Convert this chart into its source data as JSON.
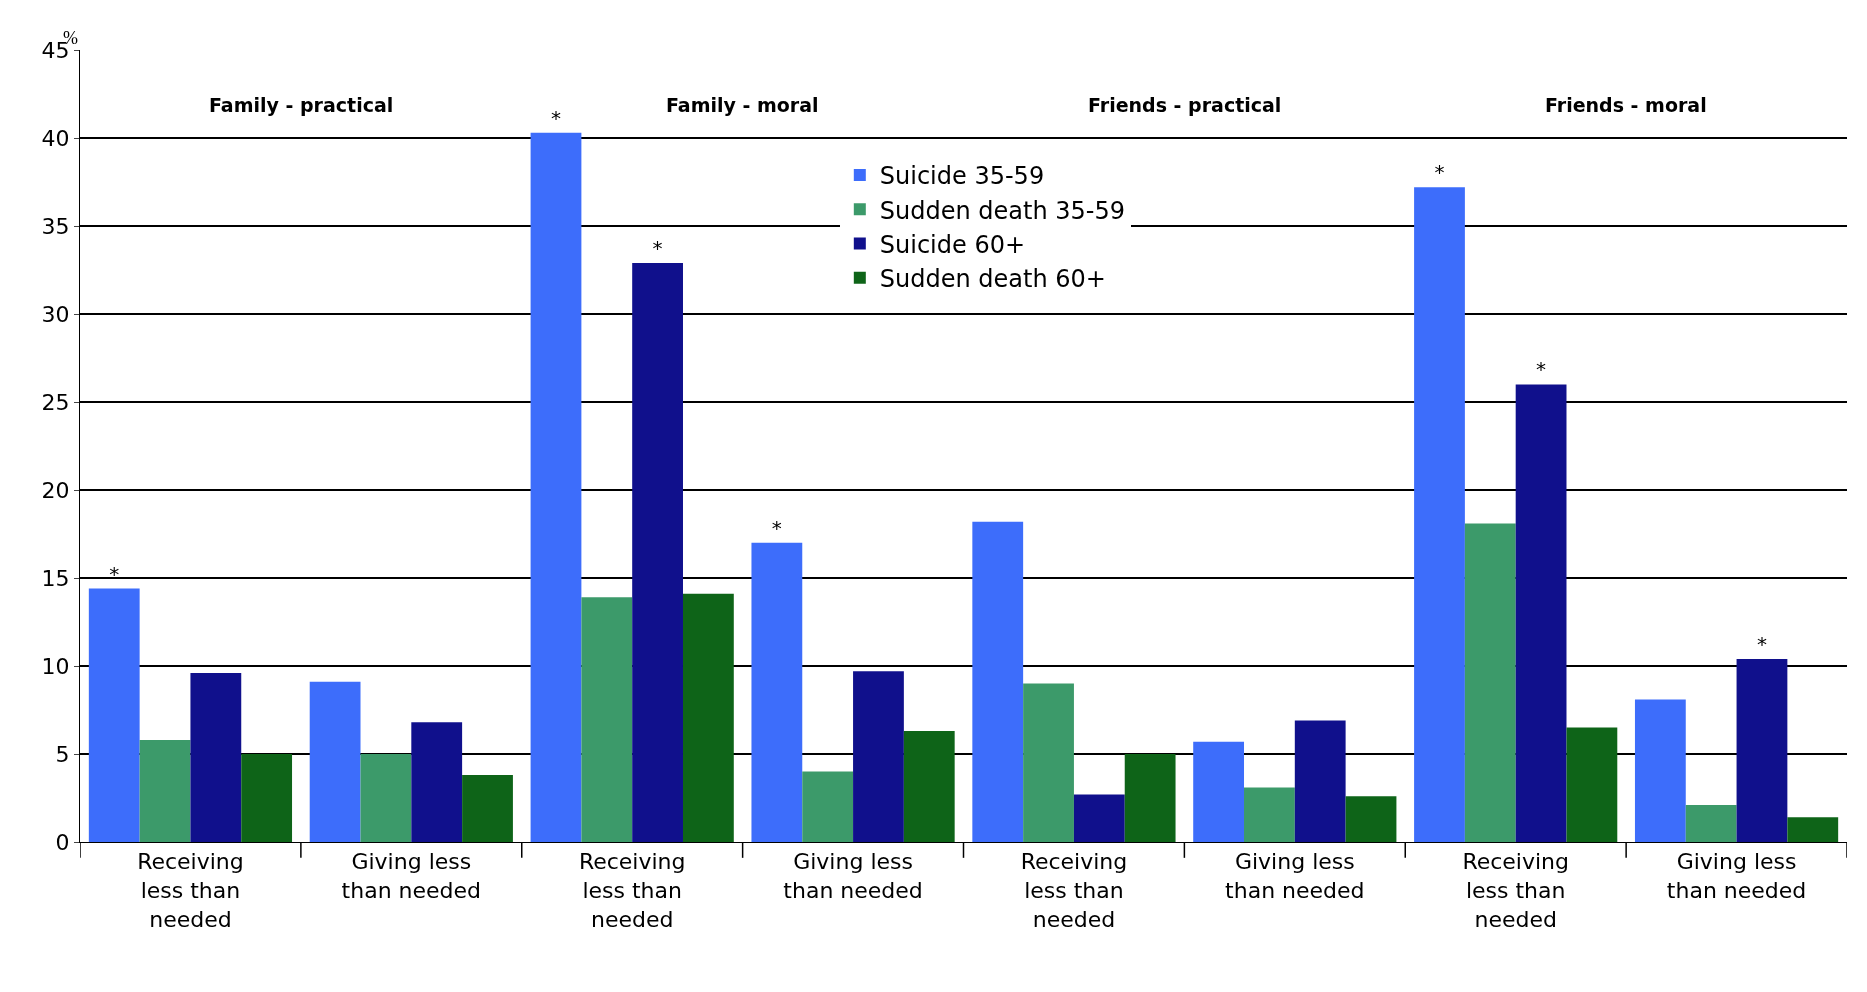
{
  "chart_data": {
    "type": "bar",
    "ylabel": "%",
    "categories": [
      "Receiving less than needed",
      "Giving less than needed",
      "Receiving less than needed",
      "Giving less than needed",
      "Receiving less than needed",
      "Giving less than needed",
      "Receiving less than needed",
      "Giving less than needed"
    ],
    "series": [
      {
        "name": "Suicide 35-59",
        "color": "#3d6dfb",
        "values": [
          14.4,
          9.1,
          40.3,
          17.0,
          18.2,
          5.7,
          37.2,
          8.1
        ],
        "value_labels": [
          "*",
          null,
          "*",
          "*",
          null,
          null,
          "*",
          null
        ]
      },
      {
        "name": "Sudden death 35-59",
        "color": "#3c9a6a",
        "values": [
          5.8,
          5.0,
          13.9,
          4.0,
          9.0,
          3.1,
          18.1,
          2.1
        ]
      },
      {
        "name": "Suicide 60+",
        "color": "#10108c",
        "values": [
          9.6,
          6.8,
          32.9,
          9.7,
          2.7,
          6.9,
          26.0,
          10.4
        ],
        "value_labels": [
          null,
          null,
          "*",
          null,
          null,
          null,
          "*",
          "*"
        ]
      },
      {
        "name": "Sudden death 60+",
        "color": "#0e6418",
        "values": [
          5.0,
          3.8,
          14.1,
          6.3,
          5.0,
          2.6,
          6.5,
          1.4
        ]
      }
    ],
    "annotations": [
      "Family - practical",
      "Family - moral",
      "Friends - practical",
      "Friends - moral"
    ],
    "ylim": [
      0,
      45
    ],
    "yticks": [
      0,
      5,
      10,
      15,
      20,
      25,
      30,
      35,
      40,
      45
    ],
    "grid": "y",
    "legend": "top"
  }
}
